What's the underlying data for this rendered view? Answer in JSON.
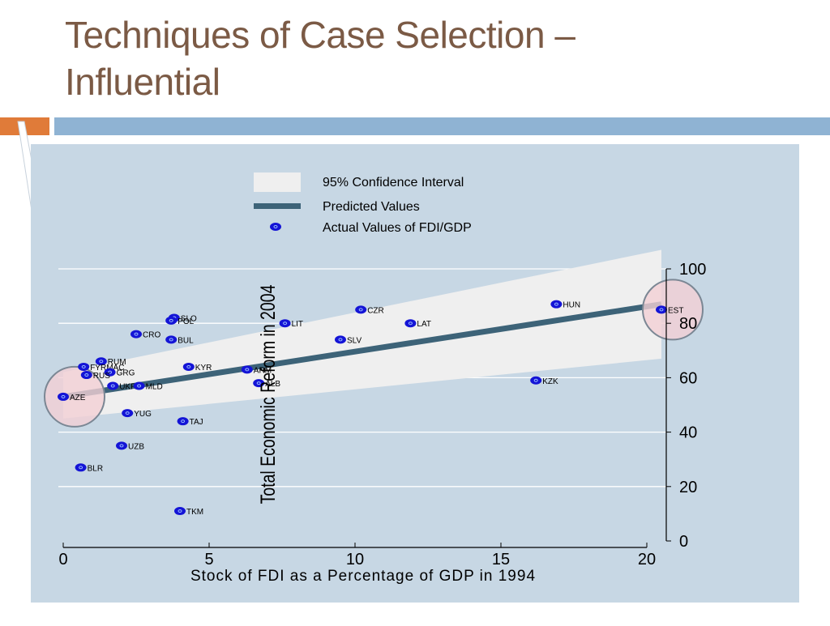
{
  "slide": {
    "title_line1": "Techniques of Case Selection –",
    "title_line2": "Influential"
  },
  "colors": {
    "title": "#7b5a45",
    "accent_orange": "#e07b39",
    "accent_blue": "#8fb3d3",
    "plot_background": "#c7d7e4",
    "confidence_band": "#efefef",
    "predicted_line": "#3d6378",
    "points": "#1414d6",
    "highlight_circle": "#f2d0d5"
  },
  "chart_data": {
    "type": "scatter",
    "title": "",
    "xlabel": "Stock of FDI as a Percentage of GDP in 1994",
    "ylabel": "Total Economic Reform in 2004",
    "xlim": [
      0,
      20
    ],
    "ylim": [
      0,
      100
    ],
    "xticks": [
      0,
      5,
      10,
      15,
      20
    ],
    "yticks": [
      0,
      20,
      40,
      60,
      80,
      100
    ],
    "y_axis_side": "right",
    "grid": "horizontal",
    "legend": {
      "placement": "top",
      "items": [
        {
          "label": "95% Confidence Interval",
          "kind": "band"
        },
        {
          "label": "Predicted Values",
          "kind": "line"
        },
        {
          "label": "Actual Values of FDI/GDP",
          "kind": "point"
        }
      ]
    },
    "predicted_line": {
      "x": [
        0,
        20.5
      ],
      "y": [
        53,
        87
      ]
    },
    "confidence_band": {
      "x": [
        0,
        20.5
      ],
      "y_lower": [
        45,
        67
      ],
      "y_upper": [
        62,
        107
      ]
    },
    "highlighted": [
      "AZE",
      "EST"
    ],
    "points": [
      {
        "label": "SLO",
        "x": 3.8,
        "y": 82
      },
      {
        "label": "POL",
        "x": 3.7,
        "y": 81
      },
      {
        "label": "CZR",
        "x": 10.2,
        "y": 85
      },
      {
        "label": "HUN",
        "x": 16.9,
        "y": 87
      },
      {
        "label": "EST",
        "x": 20.5,
        "y": 85
      },
      {
        "label": "LIT",
        "x": 7.6,
        "y": 80
      },
      {
        "label": "LAT",
        "x": 11.9,
        "y": 80
      },
      {
        "label": "CRO",
        "x": 2.5,
        "y": 76
      },
      {
        "label": "BUL",
        "x": 3.7,
        "y": 74
      },
      {
        "label": "SLV",
        "x": 9.5,
        "y": 74
      },
      {
        "label": "RUM",
        "x": 1.3,
        "y": 66
      },
      {
        "label": "FYRMAC",
        "x": 0.7,
        "y": 64
      },
      {
        "label": "GRG",
        "x": 1.6,
        "y": 62
      },
      {
        "label": "RUS",
        "x": 0.8,
        "y": 61
      },
      {
        "label": "KYR",
        "x": 4.3,
        "y": 64
      },
      {
        "label": "ARM",
        "x": 6.3,
        "y": 63
      },
      {
        "label": "ALB",
        "x": 6.7,
        "y": 58
      },
      {
        "label": "UKR",
        "x": 1.7,
        "y": 57
      },
      {
        "label": "MLD",
        "x": 2.6,
        "y": 57
      },
      {
        "label": "AZE",
        "x": 0.0,
        "y": 53
      },
      {
        "label": "KZK",
        "x": 16.2,
        "y": 59
      },
      {
        "label": "YUG",
        "x": 2.2,
        "y": 47
      },
      {
        "label": "TAJ",
        "x": 4.1,
        "y": 44
      },
      {
        "label": "UZB",
        "x": 2.0,
        "y": 35
      },
      {
        "label": "BLR",
        "x": 0.6,
        "y": 27
      },
      {
        "label": "TKM",
        "x": 4.0,
        "y": 11
      }
    ]
  }
}
